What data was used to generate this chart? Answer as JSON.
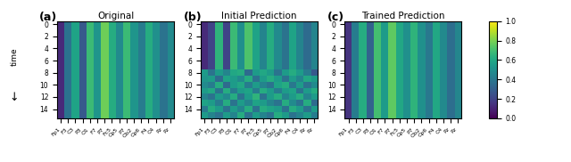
{
  "titles": [
    "Original",
    "Initial Prediction",
    "Trained Prediction"
  ],
  "panel_labels": [
    "(a)",
    "(b)",
    "(c)"
  ],
  "n_channels": 16,
  "n_time": 16,
  "channel_labels": [
    "Fp1",
    "F3",
    "C3",
    "P3",
    "O1",
    "F7",
    "P7",
    "Fc5",
    "Cp5",
    "P7",
    "Ob2",
    "Cp6",
    "F4",
    "C4",
    "Pz",
    "Pz"
  ],
  "ytick_vals": [
    0,
    2,
    4,
    6,
    8,
    10,
    12,
    14
  ],
  "cmap": "viridis",
  "vmin": 0.0,
  "vmax": 1.0,
  "colorbar_ticks": [
    0.0,
    0.2,
    0.4,
    0.6,
    0.8,
    1.0
  ],
  "ylabel": "time",
  "figsize": [
    6.4,
    1.82
  ],
  "dpi": 100,
  "original_cols": [
    0.12,
    0.38,
    0.58,
    0.28,
    0.68,
    0.52,
    0.78,
    0.62,
    0.48,
    0.68,
    0.52,
    0.42,
    0.62,
    0.5,
    0.38,
    0.48
  ],
  "trained_pred_cols": [
    0.15,
    0.42,
    0.62,
    0.32,
    0.7,
    0.55,
    0.75,
    0.6,
    0.5,
    0.65,
    0.5,
    0.4,
    0.6,
    0.48,
    0.36,
    0.46
  ],
  "init_top_rows_cols": [
    0.12,
    0.48,
    0.65,
    0.2,
    0.68,
    0.5,
    0.72,
    0.58,
    0.45,
    0.62,
    0.48,
    0.38,
    0.58,
    0.45,
    0.35,
    0.45
  ],
  "init_bottom_data": [
    [
      0.55,
      0.38,
      0.55,
      0.45,
      0.6,
      0.62,
      0.35,
      0.55,
      0.6,
      0.55,
      0.38,
      0.55,
      0.62,
      0.55,
      0.42,
      0.28
    ],
    [
      0.52,
      0.55,
      0.35,
      0.58,
      0.55,
      0.48,
      0.62,
      0.38,
      0.55,
      0.62,
      0.55,
      0.38,
      0.55,
      0.45,
      0.6,
      0.55
    ],
    [
      0.48,
      0.42,
      0.62,
      0.35,
      0.55,
      0.6,
      0.42,
      0.55,
      0.45,
      0.38,
      0.58,
      0.62,
      0.4,
      0.55,
      0.38,
      0.48
    ],
    [
      0.55,
      0.6,
      0.38,
      0.62,
      0.42,
      0.55,
      0.58,
      0.42,
      0.62,
      0.55,
      0.42,
      0.55,
      0.58,
      0.38,
      0.55,
      0.62
    ],
    [
      0.45,
      0.38,
      0.55,
      0.48,
      0.62,
      0.38,
      0.55,
      0.65,
      0.38,
      0.55,
      0.62,
      0.45,
      0.55,
      0.62,
      0.45,
      0.55
    ],
    [
      0.58,
      0.55,
      0.42,
      0.62,
      0.38,
      0.55,
      0.45,
      0.58,
      0.55,
      0.45,
      0.38,
      0.62,
      0.48,
      0.38,
      0.62,
      0.35
    ],
    [
      0.42,
      0.62,
      0.55,
      0.38,
      0.55,
      0.45,
      0.62,
      0.38,
      0.62,
      0.58,
      0.55,
      0.38,
      0.62,
      0.55,
      0.38,
      0.55
    ],
    [
      0.55,
      0.45,
      0.38,
      0.55,
      0.45,
      0.62,
      0.38,
      0.55,
      0.45,
      0.38,
      0.62,
      0.55,
      0.38,
      0.45,
      0.55,
      0.42
    ]
  ]
}
